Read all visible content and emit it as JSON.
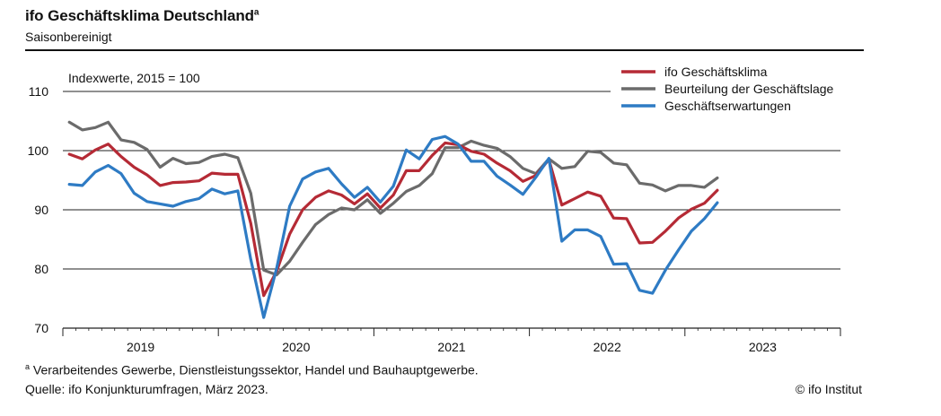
{
  "header": {
    "title": "ifo Geschäftsklima Deutschland",
    "title_sup": "a",
    "subtitle": "Saisonbereinigt"
  },
  "footer": {
    "note_sup": "a",
    "note": "Verarbeitendes Gewerbe, Dienstleistungssektor, Handel und Bauhauptgewerbe.",
    "source": "Quelle: ifo Konjunkturumfragen, März 2023.",
    "copyright": "© ifo Institut"
  },
  "chart_data": {
    "type": "line",
    "annotation": "Indexwerte, 2015 = 100",
    "ylim": [
      70,
      110
    ],
    "yticks": [
      70,
      80,
      90,
      100,
      110
    ],
    "x_start": "2019-01",
    "x_end": "2023-12",
    "year_labels": [
      "2019",
      "2020",
      "2021",
      "2022",
      "2023"
    ],
    "grid": "horizontal",
    "legend_position": "top-right",
    "months": [
      "2019-01",
      "2019-02",
      "2019-03",
      "2019-04",
      "2019-05",
      "2019-06",
      "2019-07",
      "2019-08",
      "2019-09",
      "2019-10",
      "2019-11",
      "2019-12",
      "2020-01",
      "2020-02",
      "2020-03",
      "2020-04",
      "2020-05",
      "2020-06",
      "2020-07",
      "2020-08",
      "2020-09",
      "2020-10",
      "2020-11",
      "2020-12",
      "2021-01",
      "2021-02",
      "2021-03",
      "2021-04",
      "2021-05",
      "2021-06",
      "2021-07",
      "2021-08",
      "2021-09",
      "2021-10",
      "2021-11",
      "2021-12",
      "2022-01",
      "2022-02",
      "2022-03",
      "2022-04",
      "2022-05",
      "2022-06",
      "2022-07",
      "2022-08",
      "2022-09",
      "2022-10",
      "2022-11",
      "2022-12",
      "2023-01",
      "2023-02",
      "2023-03"
    ],
    "series": [
      {
        "name": "ifo Geschäftsklima",
        "color": "#b52a35",
        "values": [
          99.4,
          98.6,
          100.1,
          101.1,
          99.0,
          97.2,
          95.9,
          94.1,
          94.6,
          94.7,
          94.9,
          96.2,
          96.0,
          96.0,
          87.7,
          75.5,
          79.6,
          85.9,
          90.0,
          92.1,
          93.2,
          92.5,
          91.0,
          92.7,
          90.3,
          92.5,
          96.6,
          96.6,
          99.2,
          101.3,
          101.0,
          99.9,
          99.4,
          97.9,
          96.6,
          94.8,
          95.8,
          98.5,
          90.8,
          91.9,
          93.0,
          92.3,
          88.6,
          88.5,
          84.4,
          84.5,
          86.4,
          88.6,
          90.1,
          91.1,
          93.3
        ]
      },
      {
        "name": "Beurteilung der Geschäftslage",
        "color": "#6b6b6b",
        "values": [
          104.8,
          103.5,
          103.9,
          104.8,
          101.8,
          101.4,
          100.2,
          97.2,
          98.7,
          97.8,
          98.0,
          99.0,
          99.4,
          98.8,
          92.8,
          79.8,
          79.0,
          81.3,
          84.5,
          87.5,
          89.2,
          90.3,
          90.0,
          91.7,
          89.4,
          91.1,
          93.1,
          94.1,
          96.1,
          100.5,
          100.5,
          101.6,
          100.9,
          100.4,
          99.0,
          97.0,
          96.1,
          98.6,
          97.0,
          97.3,
          99.9,
          99.7,
          97.9,
          97.6,
          94.5,
          94.2,
          93.2,
          94.1,
          94.1,
          93.8,
          95.4
        ]
      },
      {
        "name": "Geschäftserwartungen",
        "color": "#2e7bc4",
        "values": [
          94.3,
          94.1,
          96.4,
          97.5,
          96.1,
          92.8,
          91.4,
          91.0,
          90.6,
          91.4,
          91.9,
          93.5,
          92.7,
          93.2,
          81.6,
          71.8,
          80.1,
          90.6,
          95.2,
          96.4,
          97.0,
          94.4,
          92.1,
          93.8,
          91.3,
          94.0,
          100.1,
          98.6,
          101.9,
          102.4,
          101.1,
          98.2,
          98.2,
          95.7,
          94.2,
          92.6,
          95.5,
          98.7,
          84.7,
          86.6,
          86.6,
          85.5,
          80.8,
          80.9,
          76.4,
          75.9,
          79.8,
          83.2,
          86.4,
          88.5,
          91.2
        ]
      }
    ]
  }
}
